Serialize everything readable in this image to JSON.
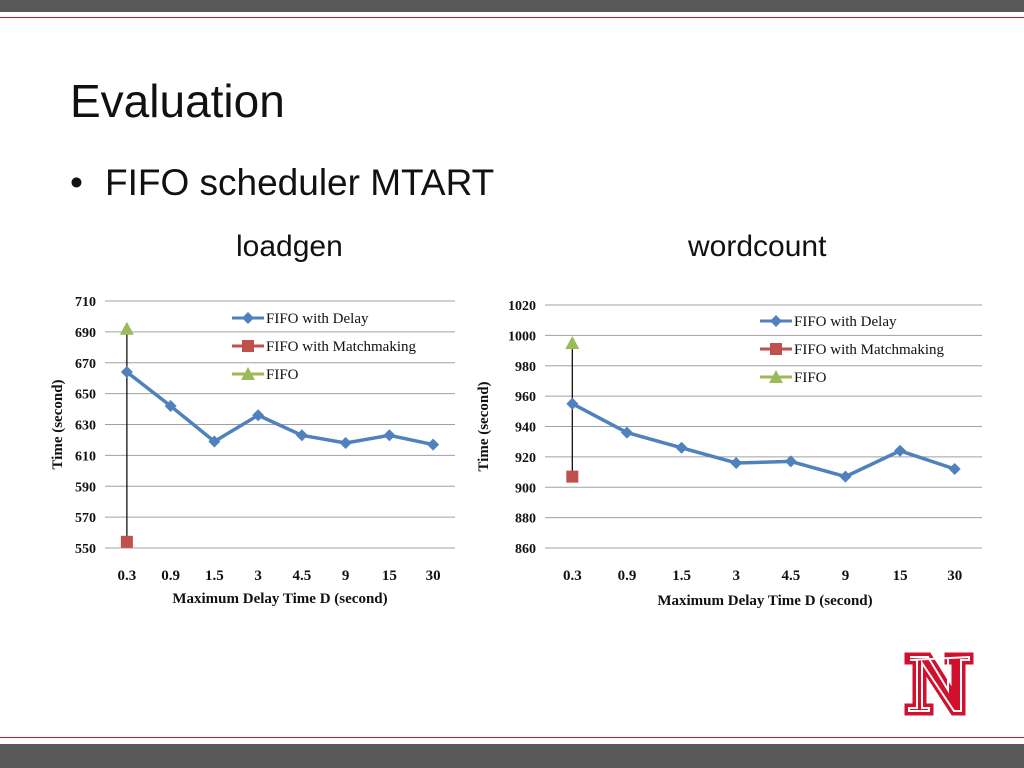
{
  "slide": {
    "title": "Evaluation",
    "bullet": "FIFO scheduler MTART",
    "colors": {
      "accent": "#d0102c",
      "bar": "#595959"
    },
    "logo": "university-n-logo"
  },
  "chart_data": [
    {
      "type": "line",
      "title": "loadgen",
      "xlabel": "Maximum Delay Time D (second)",
      "ylabel": "Time (second)",
      "categories": [
        "0.3",
        "0.9",
        "1.5",
        "3",
        "4.5",
        "9",
        "15",
        "30"
      ],
      "ylim": [
        550,
        710
      ],
      "yticks": [
        "550",
        "570",
        "590",
        "610",
        "630",
        "650",
        "670",
        "690",
        "710"
      ],
      "grid": true,
      "legend_position": "top-right",
      "series": [
        {
          "name": "FIFO with Delay",
          "color": "#4f81bd",
          "marker": "diamond",
          "values": [
            664,
            642,
            619,
            636,
            623,
            618,
            623,
            617
          ]
        },
        {
          "name": "FIFO with Matchmaking",
          "color": "#c0504d",
          "marker": "square",
          "values": [
            554,
            null,
            null,
            null,
            null,
            null,
            null,
            null
          ]
        },
        {
          "name": "FIFO",
          "color": "#9bbb59",
          "marker": "triangle",
          "values": [
            692,
            null,
            null,
            null,
            null,
            null,
            null,
            null
          ]
        }
      ]
    },
    {
      "type": "line",
      "title": "wordcount",
      "xlabel": "Maximum Delay Time D (second)",
      "ylabel": "Time (second)",
      "categories": [
        "0.3",
        "0.9",
        "1.5",
        "3",
        "4.5",
        "9",
        "15",
        "30"
      ],
      "ylim": [
        860,
        1020
      ],
      "yticks": [
        "860",
        "880",
        "900",
        "920",
        "940",
        "960",
        "980",
        "1000",
        "1020"
      ],
      "grid": true,
      "legend_position": "top-right",
      "series": [
        {
          "name": "FIFO with Delay",
          "color": "#4f81bd",
          "marker": "diamond",
          "values": [
            955,
            936,
            926,
            916,
            917,
            907,
            924,
            912
          ]
        },
        {
          "name": "FIFO with Matchmaking",
          "color": "#c0504d",
          "marker": "square",
          "values": [
            907,
            null,
            null,
            null,
            null,
            null,
            null,
            null
          ]
        },
        {
          "name": "FIFO",
          "color": "#9bbb59",
          "marker": "triangle",
          "values": [
            995,
            null,
            null,
            null,
            null,
            null,
            null,
            null
          ]
        }
      ]
    }
  ]
}
